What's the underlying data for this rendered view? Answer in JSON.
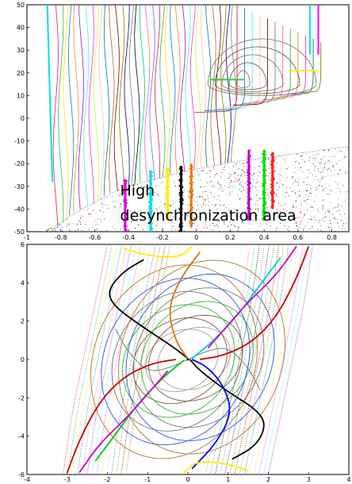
{
  "chart_data": [
    {
      "type": "scatter",
      "title": "",
      "xlabel": "",
      "ylabel": "",
      "xlim": [
        -1,
        0.9
      ],
      "ylim": [
        -50,
        50
      ],
      "x_ticks": [
        "-1",
        "-0.8",
        "-0.6",
        "-0.4",
        "-0.2",
        "0",
        "0.2",
        "0.4",
        "0.6",
        "0.8"
      ],
      "x_tick_values": [
        -1,
        -0.8,
        -0.6,
        -0.4,
        -0.2,
        0,
        0.2,
        0.4,
        0.6,
        0.8
      ],
      "y_ticks": [
        "50",
        "40",
        "30",
        "20",
        "10",
        "0",
        "-10",
        "-20",
        "-30",
        "-40",
        "-50"
      ],
      "y_tick_values": [
        50,
        40,
        30,
        20,
        10,
        0,
        -10,
        -20,
        -30,
        -40,
        -50
      ],
      "grid": false,
      "annotation": {
        "line1": "High",
        "line2": "desynchronization area",
        "x": -0.45,
        "y1": -32,
        "y2": -43
      },
      "region_boundary": {
        "x": [
          -0.9,
          -0.8,
          -0.7,
          -0.6,
          -0.5,
          -0.4,
          -0.3,
          -0.2,
          -0.1,
          0.0,
          0.1,
          0.2,
          0.3,
          0.4,
          0.5,
          0.6,
          0.7,
          0.8,
          0.9
        ],
        "y": [
          -50,
          -46,
          -41,
          -37,
          -33,
          -30,
          -28,
          -26,
          -24,
          -22.5,
          -21,
          -19.5,
          -18.5,
          -17.5,
          -16.5,
          -15.5,
          -14.5,
          -13.5,
          -12.5
        ]
      },
      "flow_lines_x0": [
        -0.83,
        -0.8,
        -0.77,
        -0.74,
        -0.71,
        -0.68,
        -0.65,
        -0.62,
        -0.59,
        -0.56,
        -0.53,
        -0.5,
        -0.47,
        -0.44,
        -0.41,
        -0.38,
        -0.35,
        -0.32,
        -0.29,
        -0.26,
        -0.23,
        -0.2,
        -0.17,
        -0.14,
        -0.11,
        -0.08,
        -0.05,
        -0.02,
        0.01,
        0.04,
        0.07,
        0.1,
        0.13,
        0.16,
        0.19,
        0.22
      ],
      "bold_segments": [
        {
          "x": -0.42,
          "y": [
            -50,
            -27
          ],
          "color": "#e000e0"
        },
        {
          "x": -0.27,
          "y": [
            -50,
            -23
          ],
          "color": "#00ddee"
        },
        {
          "x": -0.17,
          "y": [
            -45,
            -22
          ],
          "color": "#ffee00"
        },
        {
          "x": -0.09,
          "y": [
            -50,
            -21
          ],
          "color": "#111111"
        },
        {
          "x": -0.03,
          "y": [
            -48,
            -20
          ],
          "color": "#e87a10"
        },
        {
          "x": 0.31,
          "y": [
            -45,
            -14
          ],
          "color": "#c000c0"
        },
        {
          "x": 0.4,
          "y": [
            -45,
            -14
          ],
          "color": "#00dd00"
        },
        {
          "x": 0.45,
          "y": [
            -40,
            -15
          ],
          "color": "#ff2020"
        }
      ],
      "horizontal_segments": [
        {
          "x": [
            0.08,
            0.28
          ],
          "y": 17,
          "color": "#33cc33"
        },
        {
          "x": [
            0.55,
            0.72
          ],
          "y": 21,
          "color": "#ffee00"
        }
      ],
      "top_lines": [
        {
          "x": -0.88,
          "color": "#00ddee"
        },
        {
          "x": 0.67,
          "color": "#00ddee"
        },
        {
          "x": 0.72,
          "color": "#ff00ff"
        }
      ]
    },
    {
      "type": "line",
      "title": "",
      "xlabel": "",
      "ylabel": "",
      "xlim": [
        -4,
        4
      ],
      "ylim": [
        -6,
        6
      ],
      "x_ticks": [
        "-4",
        "-3",
        "-2",
        "-1",
        "0",
        "1",
        "2",
        "3",
        "4"
      ],
      "x_tick_values": [
        -4,
        -3,
        -2,
        -1,
        0,
        1,
        2,
        3,
        4
      ],
      "y_ticks": [
        "6",
        "4",
        "2",
        "0",
        "-2",
        "-4",
        "-6"
      ],
      "y_tick_values": [
        6,
        4,
        2,
        0,
        -2,
        -4,
        -6
      ],
      "grid": false,
      "saddle": [
        0,
        0
      ],
      "nullcline": {
        "x": [
          -1.8,
          -1.5,
          -1.0,
          -0.5,
          0.0,
          0.5,
          1.0,
          1.5,
          1.8
        ],
        "y": [
          1.6,
          0.4,
          -0.66,
          -0.47,
          0.0,
          0.47,
          0.66,
          -0.4,
          -1.6
        ]
      },
      "trajectories": [
        {
          "color": "#000000",
          "x": [
            -1.1,
            -1.6,
            -2.0,
            -1.85,
            -1.2,
            -0.4,
            0.0
          ],
          "y": [
            5.2,
            4.6,
            3.6,
            2.8,
            1.8,
            0.7,
            0.05
          ]
        },
        {
          "color": "#e07000",
          "x": [
            0.3,
            -0.2,
            -0.5,
            -0.3,
            0.0
          ],
          "y": [
            5.6,
            4.2,
            2.6,
            0.9,
            0.05
          ]
        },
        {
          "color": "#000000",
          "x": [
            1.1,
            1.7,
            1.95,
            1.7,
            1.0,
            0.3,
            0.05
          ],
          "y": [
            -5.2,
            -4.5,
            -3.4,
            -2.6,
            -1.7,
            -0.6,
            0.0
          ]
        },
        {
          "color": "#0000ff",
          "x": [
            0.1,
            0.7,
            1.1,
            0.9,
            0.5,
            0.1
          ],
          "y": [
            -5.7,
            -4.4,
            -2.8,
            -1.4,
            -0.4,
            0.0
          ]
        },
        {
          "color": "#00cc00",
          "x": [
            -2.3,
            -1.8,
            -1.2,
            -0.6,
            -0.1
          ],
          "y": [
            -5.3,
            -3.9,
            -2.2,
            -0.9,
            -0.05
          ]
        },
        {
          "color": "#00ccdd",
          "x": [
            2.3,
            1.8,
            1.2,
            0.6,
            0.1
          ],
          "y": [
            5.3,
            3.9,
            2.2,
            0.9,
            0.05
          ]
        },
        {
          "color": "#cc0000",
          "x": [
            -3.0,
            -2.7,
            -2.2,
            -1.6,
            -0.9,
            -0.3
          ],
          "y": [
            -5.9,
            -4.2,
            -2.2,
            -0.9,
            -0.2,
            0.0
          ]
        },
        {
          "color": "#cc0000",
          "x": [
            3.0,
            2.7,
            2.2,
            1.6,
            0.9,
            0.3
          ],
          "y": [
            5.9,
            4.2,
            2.2,
            0.9,
            0.2,
            0.0
          ]
        },
        {
          "color": "#ffee00",
          "x": [
            -1.6,
            -1.0,
            -0.2,
            0.1
          ],
          "y": [
            5.8,
            5.4,
            5.3,
            5.9
          ]
        },
        {
          "color": "#ffee00",
          "x": [
            1.5,
            0.9,
            0.2,
            -0.1
          ],
          "y": [
            -5.8,
            -5.4,
            -5.3,
            -5.9
          ]
        },
        {
          "color": "#cc00cc",
          "x": [
            2.7,
            2.2,
            1.5,
            1.0,
            0.5
          ],
          "y": [
            5.9,
            4.4,
            3.0,
            1.8,
            0.6
          ]
        },
        {
          "color": "#cc00cc",
          "x": [
            -2.7,
            -2.2,
            -1.5,
            -1.0,
            -0.5
          ],
          "y": [
            -5.9,
            -4.4,
            -3.0,
            -1.8,
            -0.6
          ]
        }
      ],
      "loops": [
        {
          "color": "#a0a0a0",
          "xr": 1.0,
          "yr": 1.6
        },
        {
          "color": "#7a5c4a",
          "xr": 1.3,
          "yr": 2.2
        },
        {
          "color": "#33bb33",
          "xr": 1.55,
          "yr": 2.9
        },
        {
          "color": "#777777",
          "xr": 1.8,
          "yr": 3.6
        },
        {
          "color": "#3355ee",
          "xr": 2.05,
          "yr": 4.3
        },
        {
          "color": "#aa7733",
          "xr": 2.3,
          "yr": 5.0
        }
      ]
    }
  ]
}
